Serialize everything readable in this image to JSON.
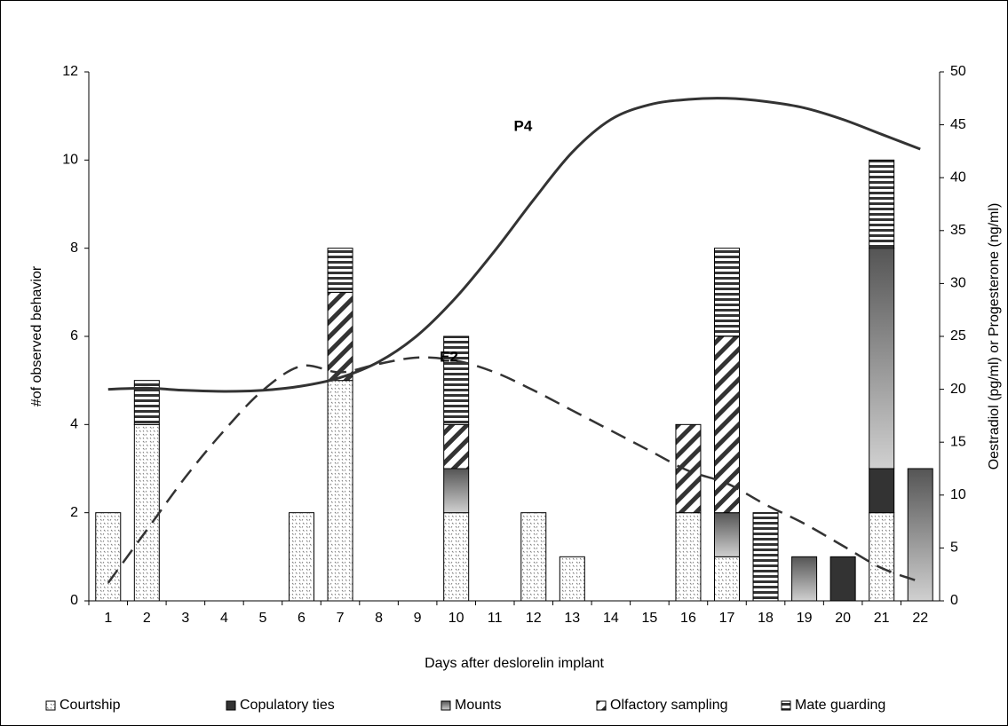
{
  "chart_data": {
    "type": "bar",
    "x_label": "Days after deslorelin implant",
    "y_label": "#of observed behavior",
    "y2_label": "Oestradiol (pg/ml) or Progesterone (ng/ml)",
    "categories": [
      "1",
      "2",
      "3",
      "4",
      "5",
      "6",
      "7",
      "8",
      "9",
      "10",
      "11",
      "12",
      "13",
      "14",
      "15",
      "16",
      "17",
      "18",
      "19",
      "20",
      "21",
      "22"
    ],
    "stacked": true,
    "series": [
      {
        "name": "Courtship",
        "color": "#ffffff",
        "pattern": "dots",
        "values": [
          2,
          4,
          0,
          0,
          0,
          2,
          5,
          0,
          0,
          2,
          0,
          2,
          1,
          0,
          0,
          2,
          1,
          0,
          0,
          0,
          2,
          0
        ]
      },
      {
        "name": "Copulatory ties",
        "color": "#333333",
        "pattern": "solid",
        "values": [
          0,
          0,
          0,
          0,
          0,
          0,
          0,
          0,
          0,
          0,
          0,
          0,
          0,
          0,
          0,
          0,
          0,
          0,
          0,
          1,
          1,
          0
        ]
      },
      {
        "name": "Mounts",
        "color": "#888888",
        "pattern": "gradient",
        "values": [
          0,
          0,
          0,
          0,
          0,
          0,
          0,
          0,
          0,
          1,
          0,
          0,
          0,
          0,
          0,
          0,
          1,
          0,
          1,
          0,
          5,
          3
        ]
      },
      {
        "name": "Olfactory sampling",
        "color": "#ffffff",
        "pattern": "diagonal",
        "values": [
          0,
          0,
          0,
          0,
          0,
          0,
          2,
          0,
          0,
          1,
          0,
          0,
          0,
          0,
          0,
          2,
          4,
          0,
          0,
          0,
          0,
          0
        ]
      },
      {
        "name": "Mate guarding",
        "color": "#ffffff",
        "pattern": "horizontal",
        "values": [
          0,
          1,
          0,
          0,
          0,
          0,
          1,
          0,
          0,
          2,
          0,
          0,
          0,
          0,
          0,
          0,
          2,
          2,
          0,
          0,
          2,
          0
        ]
      }
    ],
    "lines": [
      {
        "label": "P4",
        "axis": "y2",
        "color": "#333333",
        "dash": "solid",
        "values": [
          20.0,
          20.1,
          19.9,
          19.8,
          19.9,
          20.3,
          21.1,
          22.6,
          25.1,
          28.7,
          33.1,
          37.9,
          42.4,
          45.5,
          46.9,
          47.4,
          47.5,
          47.2,
          46.6,
          45.5,
          44.1,
          42.7
        ]
      },
      {
        "label": "E2",
        "axis": "y2",
        "color": "#333333",
        "dash": "dashed",
        "values": [
          1.7,
          6.7,
          11.7,
          16.1,
          19.9,
          22.2,
          21.6,
          22.4,
          23.0,
          22.7,
          21.6,
          19.9,
          18.0,
          16.1,
          14.2,
          12.3,
          11.1,
          9.1,
          7.3,
          5.2,
          3.1,
          1.8
        ]
      }
    ],
    "ylim": [
      0,
      12
    ],
    "yticks": [
      0,
      2,
      4,
      6,
      8,
      10,
      12
    ],
    "y2lim": [
      0,
      50
    ],
    "y2ticks": [
      0,
      5,
      10,
      15,
      20,
      25,
      30,
      35,
      40,
      45,
      50
    ],
    "grid": false,
    "legend": "bottom"
  }
}
